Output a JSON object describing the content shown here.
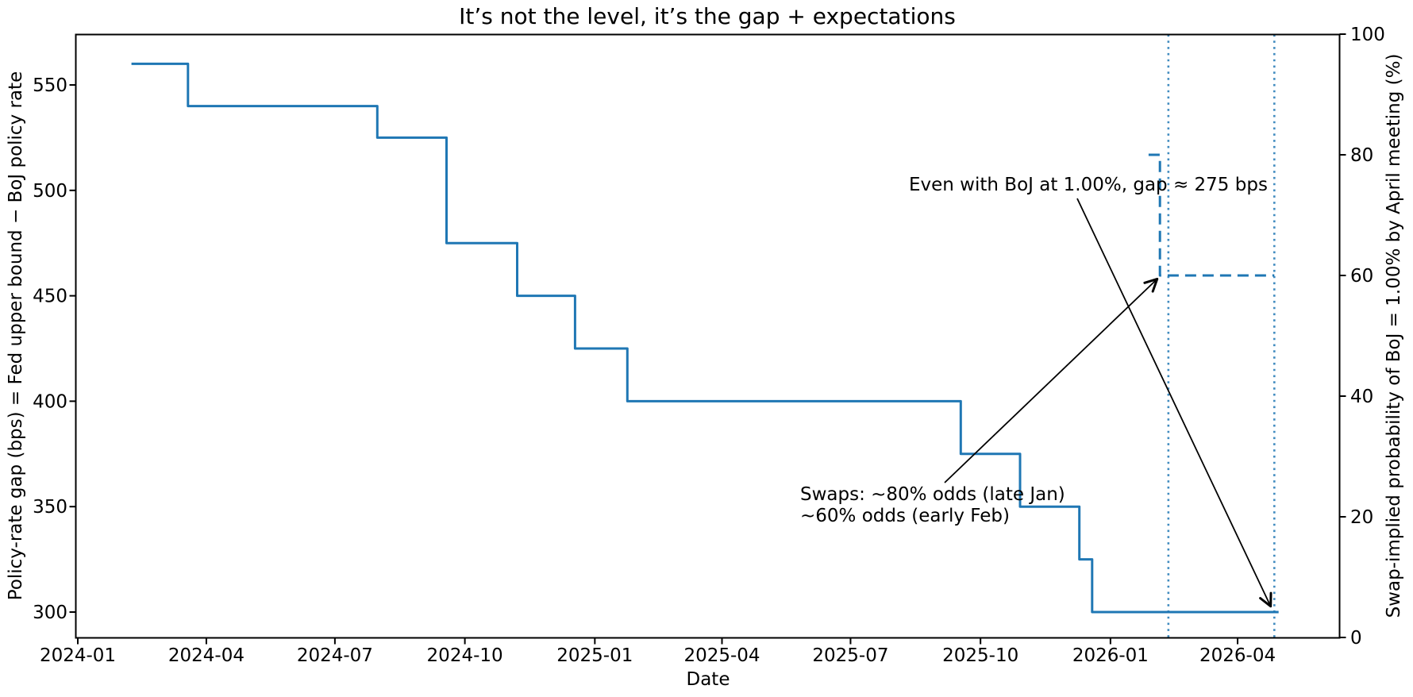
{
  "chart_data": {
    "type": "line",
    "title": "It’s not the level, it’s the gap + expectations",
    "xlabel": "Date",
    "ylabel_left": "Policy-rate gap (bps) = Fed upper bound − BoJ policy rate",
    "ylabel_right": "Swap-implied probability of BoJ = 1.00% by April meeting (%)",
    "axes": {
      "x_ticks": [
        {
          "date": "2024-01-01",
          "label": "2024-01"
        },
        {
          "date": "2024-04-01",
          "label": "2024-04"
        },
        {
          "date": "2024-07-01",
          "label": "2024-07"
        },
        {
          "date": "2024-10-01",
          "label": "2024-10"
        },
        {
          "date": "2025-01-01",
          "label": "2025-01"
        },
        {
          "date": "2025-04-01",
          "label": "2025-04"
        },
        {
          "date": "2025-07-01",
          "label": "2025-07"
        },
        {
          "date": "2025-10-01",
          "label": "2025-10"
        },
        {
          "date": "2026-01-01",
          "label": "2026-01"
        },
        {
          "date": "2026-04-01",
          "label": "2026-04"
        }
      ],
      "y_left_ticks": [
        300,
        350,
        400,
        450,
        500,
        550
      ],
      "y_left_range": [
        287,
        573
      ],
      "y_right_ticks": [
        0,
        20,
        40,
        60,
        80,
        100
      ],
      "y_right_range": [
        0,
        100
      ],
      "grid": false,
      "legend": false
    },
    "accent_color": "#1f77b4",
    "series": [
      {
        "name": "Policy-rate gap (bps)",
        "axis": "left",
        "style": "solid",
        "color": "#1f77b4",
        "points": [
          {
            "date": "2024-02-08",
            "value": 560
          },
          {
            "date": "2024-03-19",
            "value": 540
          },
          {
            "date": "2024-07-31",
            "value": 525
          },
          {
            "date": "2024-09-18",
            "value": 475
          },
          {
            "date": "2024-11-07",
            "value": 450
          },
          {
            "date": "2024-12-18",
            "value": 425
          },
          {
            "date": "2025-01-24",
            "value": 400
          },
          {
            "date": "2025-09-17",
            "value": 375
          },
          {
            "date": "2025-10-29",
            "value": 350
          },
          {
            "date": "2025-12-10",
            "value": 325
          },
          {
            "date": "2025-12-19",
            "value": 300
          },
          {
            "date": "2026-04-30",
            "value": 300
          }
        ]
      },
      {
        "name": "Swap-implied probability of BoJ = 1.00% by April meeting (%)",
        "axis": "right",
        "style": "dashed",
        "color": "#1f77b4",
        "points": [
          {
            "date": "2026-01-28",
            "value": 80
          },
          {
            "date": "2026-02-05",
            "value": 80
          },
          {
            "date": "2026-02-05",
            "value": 60
          },
          {
            "date": "2026-04-27",
            "value": 60
          }
        ]
      }
    ],
    "vlines": [
      {
        "date": "2026-02-11",
        "style": "dotted",
        "color": "#1f77b4"
      },
      {
        "date": "2026-04-27",
        "style": "dotted",
        "color": "#1f77b4"
      }
    ],
    "annotations": [
      {
        "text": "Even with BoJ at 1.00%, gap ≈ 275 bps",
        "target_date": "2026-04-27",
        "target_value": 300,
        "target_axis": "left"
      },
      {
        "text": "Swaps: ~80% odds (late Jan)\n~60% odds (early Feb)",
        "target_date": "2026-02-05",
        "target_value": 60,
        "target_axis": "right"
      }
    ]
  }
}
